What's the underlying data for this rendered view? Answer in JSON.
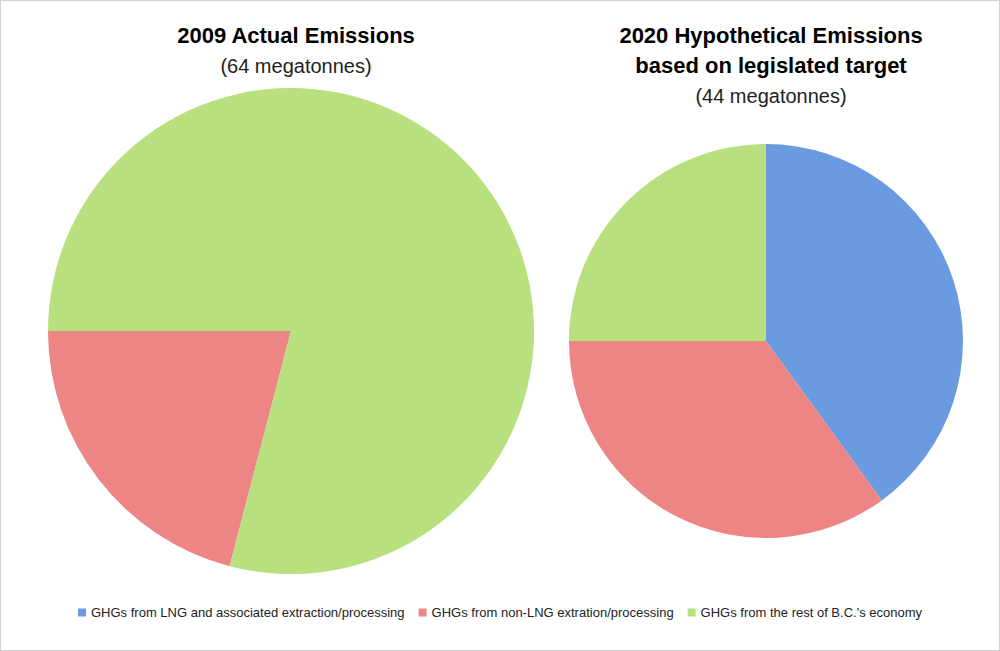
{
  "chart_data": [
    {
      "type": "pie",
      "title": "2009 Actual Emissions",
      "subtitle": "(64 megatonnes)",
      "categories": [
        "GHGs from non-LNG extration/processing",
        "GHGs from the rest of B.C.'s economy"
      ],
      "values": [
        13.4,
        50.6
      ],
      "colors": [
        "#ee8585",
        "#b8e07e"
      ]
    },
    {
      "type": "pie",
      "title": "2020 Hypothetical Emissions\nbased on legislated target",
      "subtitle": "(44 megatonnes)",
      "categories": [
        "GHGs from LNG and associated extraction/processing",
        "GHGs from non-LNG extration/processing",
        "GHGs from the rest of B.C.'s economy"
      ],
      "values": [
        17.6,
        15.4,
        11.0
      ],
      "colors": [
        "#6a9be0",
        "#ee8585",
        "#b8e07e"
      ],
      "legend": "bottom"
    }
  ]
}
